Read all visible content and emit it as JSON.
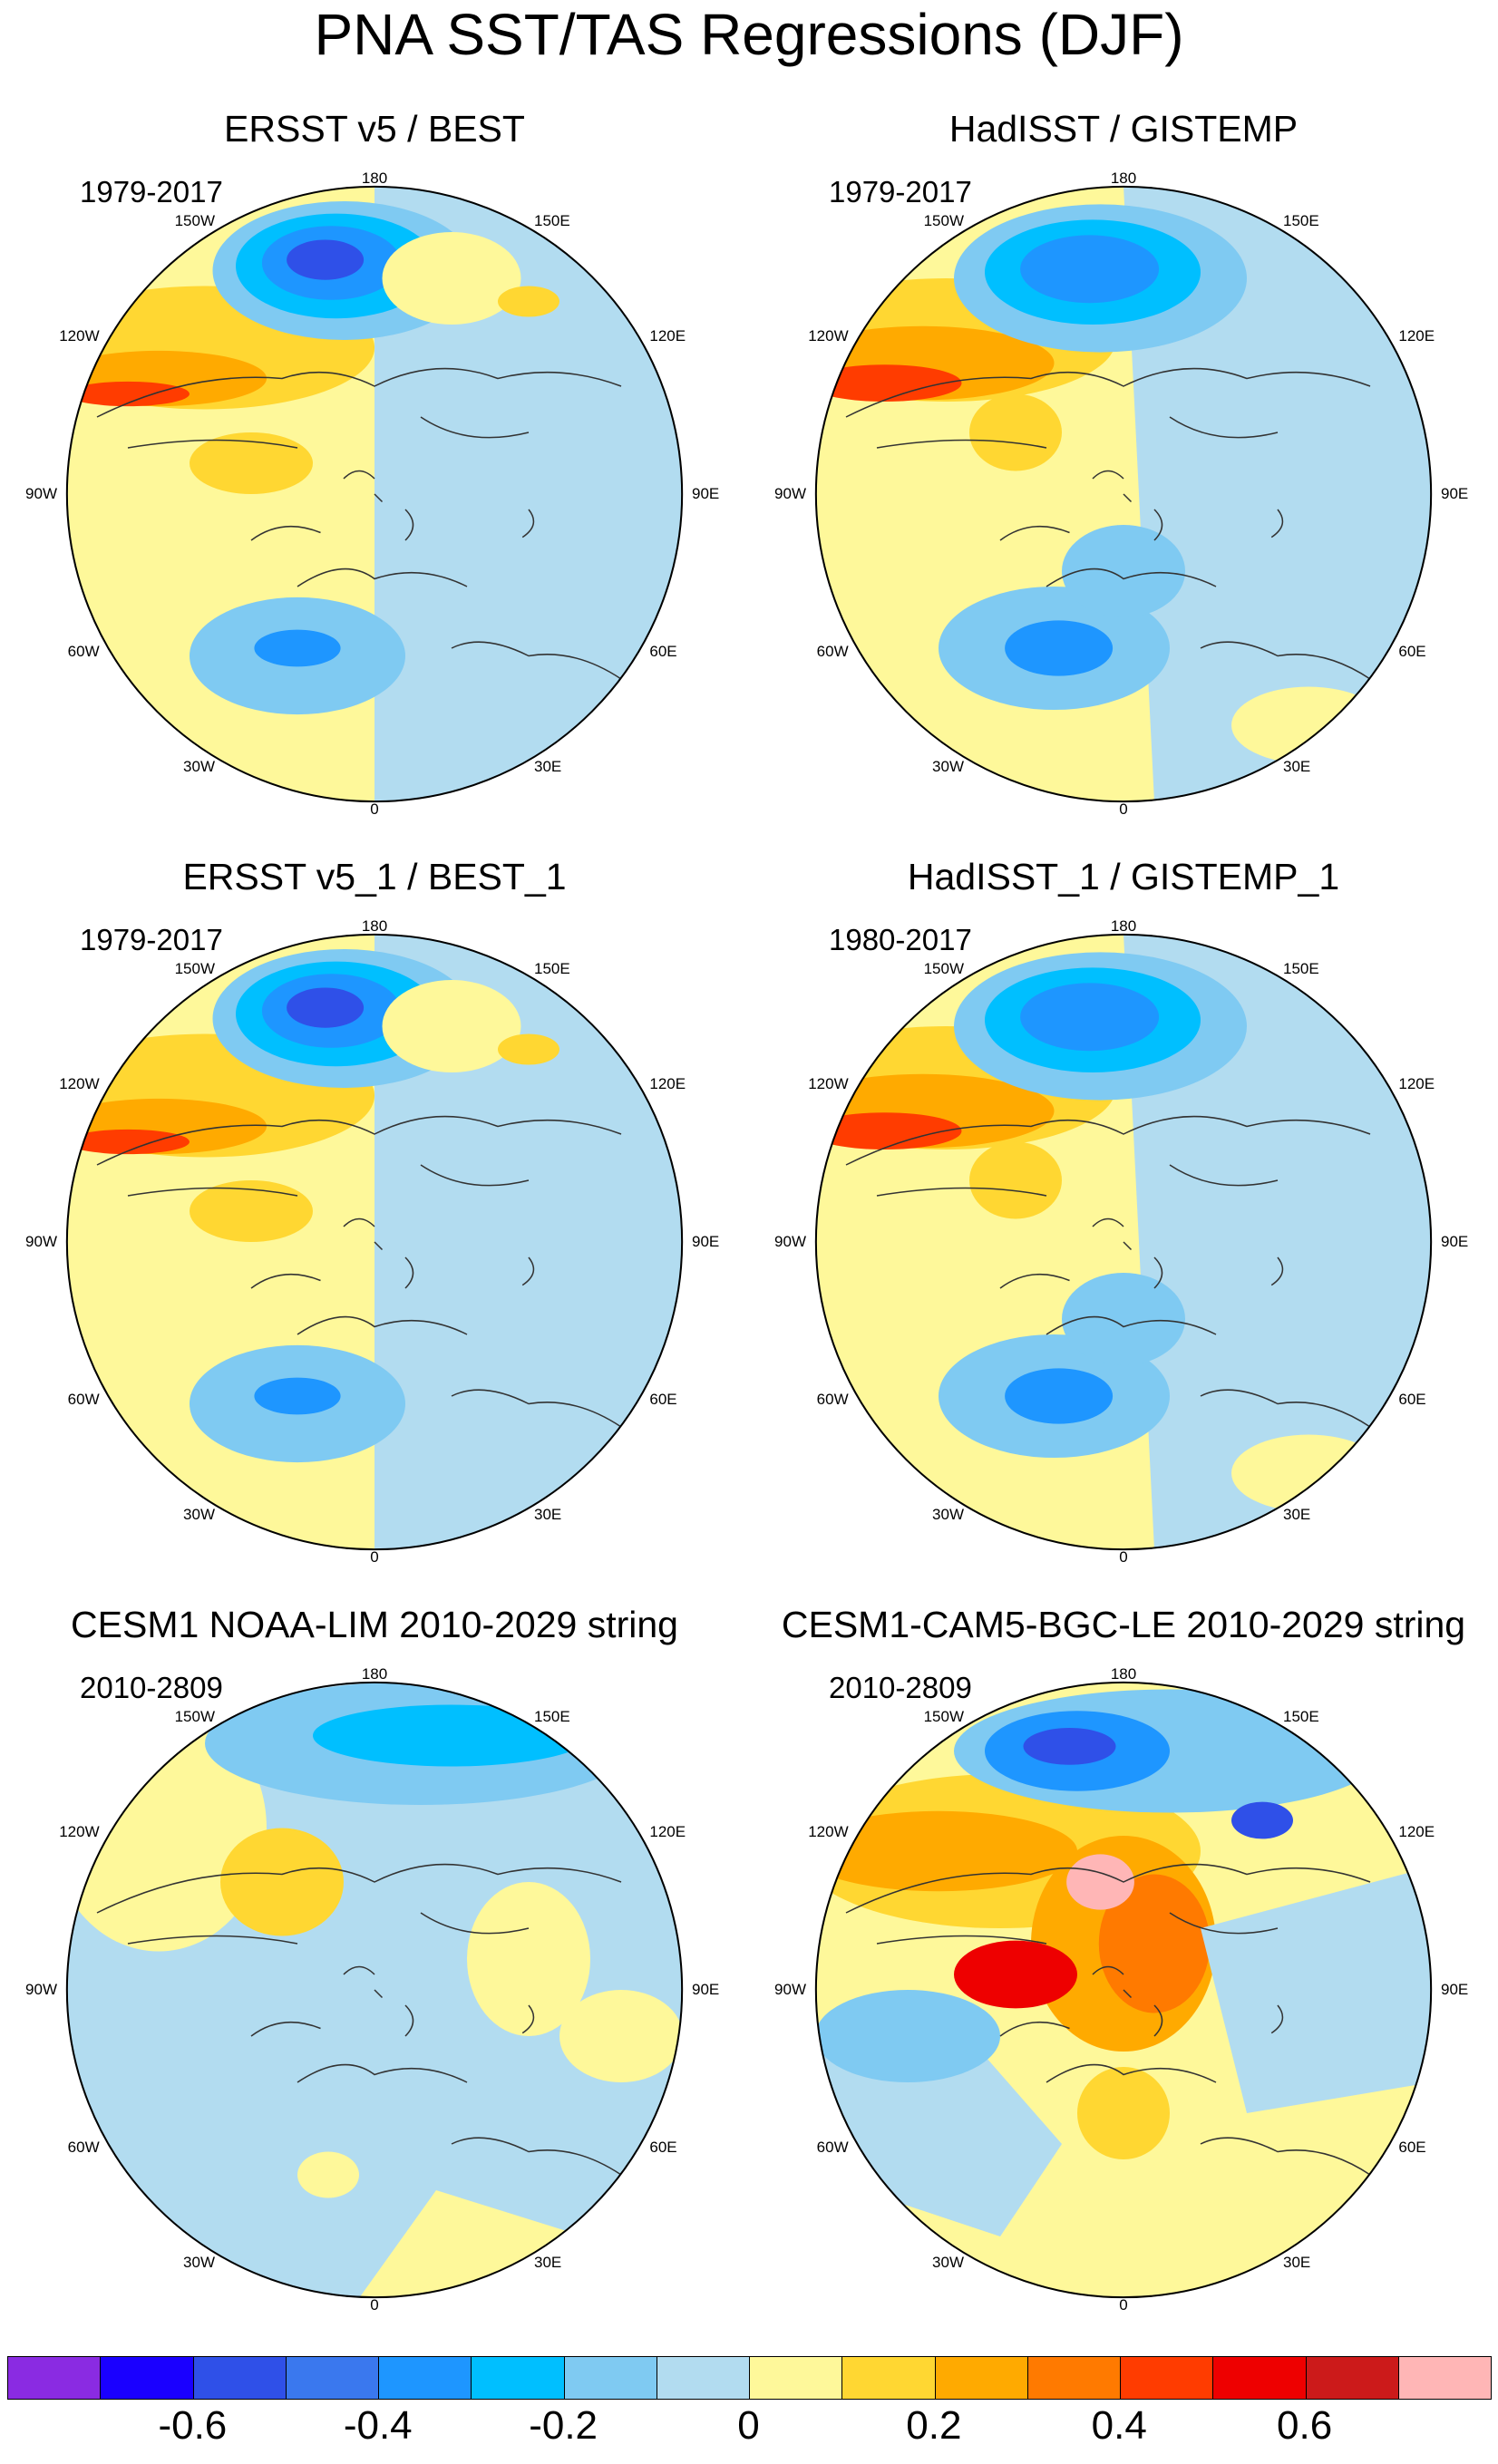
{
  "title": "PNA SST/TAS Regressions (DJF)",
  "panels": [
    {
      "title": "ERSST v5 / BEST",
      "period": "1979-2017",
      "style": "obs"
    },
    {
      "title": "HadISST / GISTEMP",
      "period": "1979-2017",
      "style": "obs2"
    },
    {
      "title": "ERSST v5_1 / BEST_1",
      "period": "1979-2017",
      "style": "obs"
    },
    {
      "title": "HadISST_1 / GISTEMP_1",
      "period": "1980-2017",
      "style": "obs2"
    },
    {
      "title": "CESM1 NOAA-LIM 2010-2029 string",
      "period": "2010-2809",
      "style": "lim"
    },
    {
      "title": "CESM1-CAM5-BGC-LE 2010-2029 string",
      "period": "2010-2809",
      "style": "le"
    }
  ],
  "longitude_labels": {
    "top": "180",
    "top_right": "150E",
    "right_upper": "120E",
    "right": "90E",
    "right_lower": "60E",
    "bottom_right": "30E",
    "bottom": "0",
    "bottom_left": "30W",
    "left_lower": "60W",
    "left": "90W",
    "left_upper": "120W",
    "top_left": "150W"
  },
  "colorbar": {
    "colors": [
      "#8a2be2",
      "#1a00ff",
      "#2f50e8",
      "#3a78ee",
      "#1e96ff",
      "#00bfff",
      "#7fcaf2",
      "#b2dcf0",
      "#fef89a",
      "#ffd732",
      "#ffaa00",
      "#ff7a00",
      "#ff3c00",
      "#ee0000",
      "#cc1a1a",
      "#ffb6b6"
    ],
    "labels": [
      "-0.6",
      "-0.4",
      "-0.2",
      "0",
      "0.2",
      "0.4",
      "0.6"
    ],
    "label_values": [
      -0.6,
      -0.4,
      -0.2,
      0,
      0.2,
      0.4,
      0.6
    ],
    "min": -0.8,
    "max": 0.8
  }
}
